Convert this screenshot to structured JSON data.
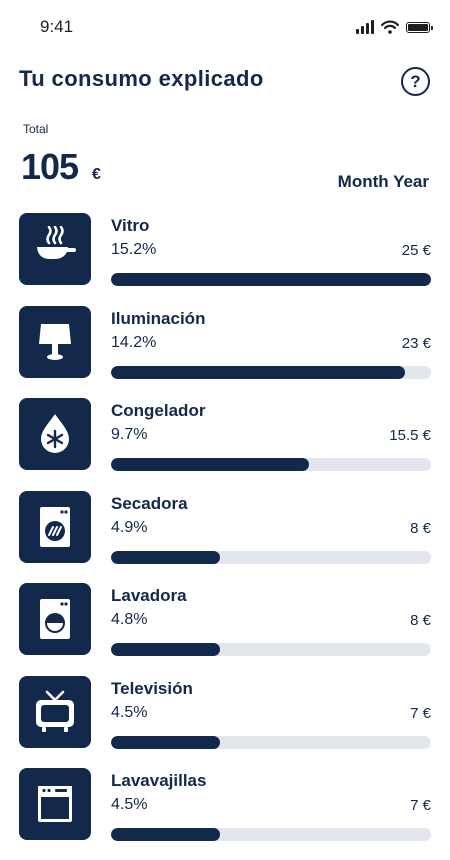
{
  "status": {
    "time": "9:41"
  },
  "header": {
    "title": "Tu consumo explicado",
    "help_label": "?"
  },
  "summary": {
    "label": "Total",
    "value": "105",
    "currency": "€",
    "period_label": "Month Year"
  },
  "items": [
    {
      "name": "Vitro",
      "percent": "15.2%",
      "cost": "25 €",
      "progress": 1.0,
      "icon": "frying-pan-icon"
    },
    {
      "name": "Iluminación",
      "percent": "14.2%",
      "cost": "23 €",
      "progress": 0.92,
      "icon": "lamp-icon"
    },
    {
      "name": "Congelador",
      "percent": "9.7%",
      "cost": "15.5 €",
      "progress": 0.62,
      "icon": "snowflake-drop-icon"
    },
    {
      "name": "Secadora",
      "percent": "4.9%",
      "cost": "8 €",
      "progress": 0.34,
      "icon": "dryer-icon"
    },
    {
      "name": "Lavadora",
      "percent": "4.8%",
      "cost": "8 €",
      "progress": 0.34,
      "icon": "washing-machine-icon"
    },
    {
      "name": "Televisión",
      "percent": "4.5%",
      "cost": "7 €",
      "progress": 0.34,
      "icon": "tv-icon"
    },
    {
      "name": "Lavavajillas",
      "percent": "4.5%",
      "cost": "7 €",
      "progress": 0.34,
      "icon": "dishwasher-icon"
    }
  ],
  "colors": {
    "primary": "#13294b",
    "track": "#e3e6ec",
    "background": "#ffffff"
  }
}
